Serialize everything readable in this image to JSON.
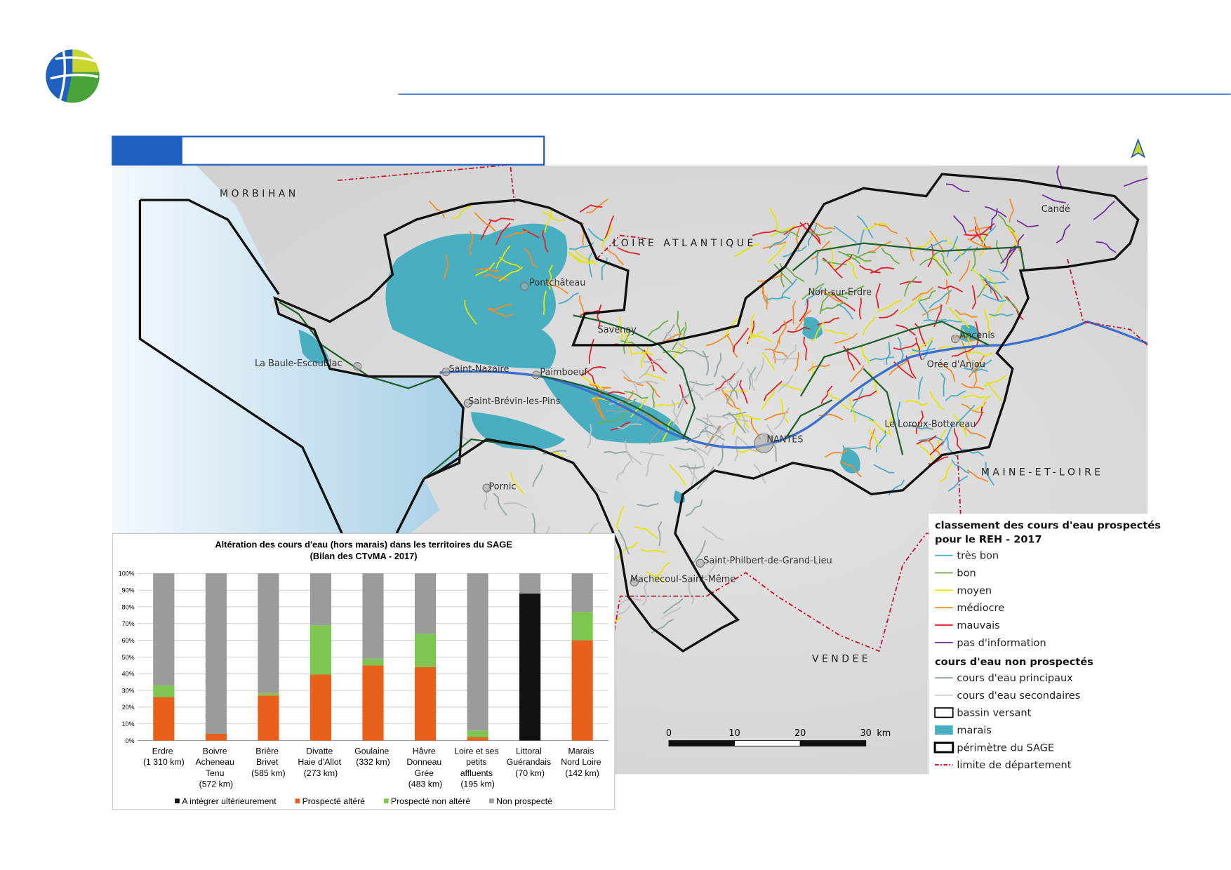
{
  "map": {
    "regions": [
      "MORBIHAN",
      "LOIRE ATLANTIQUE",
      "MAINE-ET-LOIRE",
      "VENDEE"
    ],
    "towns": [
      "Candé",
      "Pontchâteau",
      "Nort-sur-Erdre",
      "Savenay",
      "Ancenis",
      "La Baule-Escoublac",
      "Saint-Nazaire",
      "Paimboeuf",
      "Orée d'Anjou",
      "Saint-Brévin-les-Pins",
      "Le Loroux-Bottereau",
      "NANTES",
      "Pornic",
      "Saint-Philbert-de-Grand-Lieu",
      "Machecoul-Saint-Même"
    ],
    "scale": {
      "ticks": [
        0,
        10,
        20,
        30
      ],
      "unit": "km"
    }
  },
  "legend": {
    "prospected": {
      "title": "classement des cours d'eau prospectés pour le REH - 2017",
      "items": [
        {
          "label": "très bon",
          "color": "#4bacc6",
          "symbol": "line"
        },
        {
          "label": "bon",
          "color": "#70ad47",
          "symbol": "line"
        },
        {
          "label": "moyen",
          "color": "#e6e600",
          "symbol": "line"
        },
        {
          "label": "médiocre",
          "color": "#f28c28",
          "symbol": "line"
        },
        {
          "label": "mauvais",
          "color": "#e0202a",
          "symbol": "line"
        },
        {
          "label": "pas d'information",
          "color": "#7030a0",
          "symbol": "line"
        }
      ]
    },
    "unprospected": {
      "title": "cours d'eau non prospectés",
      "items": [
        {
          "label": "cours d'eau principaux",
          "color": "#8fa5a5",
          "symbol": "line"
        },
        {
          "label": "cours d'eau secondaires",
          "color": "#d0d0d0",
          "symbol": "line"
        },
        {
          "label": "bassin versant",
          "color": "#000000",
          "symbol": "box"
        },
        {
          "label": "marais",
          "color": "#4aaec1",
          "symbol": "fill"
        },
        {
          "label": "périmètre du SAGE",
          "color": "#000000",
          "symbol": "thick-box"
        },
        {
          "label": "limite de département",
          "color": "#c8102e",
          "symbol": "dash"
        }
      ]
    }
  },
  "chart_data": {
    "type": "stacked-bar",
    "title": "Altération des cours d'eau (hors marais) dans les territoires du SAGE",
    "subtitle": "(Bilan des CTvMA - 2017)",
    "categories": [
      "Erdre\n(1 310 km)",
      "Boivre\nAcheneau\nTenu\n(572 km)",
      "Brière\nBrivet\n(585 km)",
      "Divatte\nHaie d'Allot\n(273 km)",
      "Goulaine\n(332 km)",
      "Hâvre\nDonneau\nGrée\n(483 km)",
      "Loire et ses\npetits\naffluents\n(195 km)",
      "Littoral\nGuérandais\n(70 km)",
      "Marais\nNord Loire\n(142 km)"
    ],
    "series": [
      {
        "name": "A intégrer ultérieurement",
        "color": "#111111",
        "values": [
          0,
          0,
          0,
          0,
          0,
          0,
          0,
          88,
          0
        ]
      },
      {
        "name": "Prospecté altéré",
        "color": "#e8601c",
        "values": [
          26,
          4,
          27,
          39.5,
          45,
          44,
          2,
          0,
          60
        ]
      },
      {
        "name": "Prospecté non altéré",
        "color": "#7dc652",
        "values": [
          7,
          0,
          1.5,
          29.5,
          4,
          20,
          4,
          0,
          17
        ]
      },
      {
        "name": "Non prospecté",
        "color": "#9b9b9b",
        "values": [
          67,
          96,
          71.5,
          31,
          51,
          36,
          94,
          12,
          23
        ]
      }
    ],
    "ylim": [
      0,
      100
    ],
    "yticks": [
      {
        "value": 0,
        "label": "0%"
      },
      {
        "value": 10,
        "label": "10%"
      },
      {
        "value": 20,
        "label": "20%"
      },
      {
        "value": 30,
        "label": "30%"
      },
      {
        "value": 40,
        "label": "40%"
      },
      {
        "value": 50,
        "label": "50%"
      },
      {
        "value": 60,
        "label": "60%"
      },
      {
        "value": 70,
        "label": "70%"
      },
      {
        "value": 80,
        "label": "80%"
      },
      {
        "value": 90,
        "label": "90%"
      },
      {
        "value": 100,
        "label": "100%"
      }
    ],
    "grid": true,
    "legend": "bottom"
  }
}
